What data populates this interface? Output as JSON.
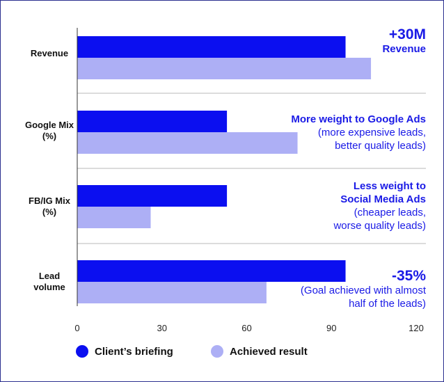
{
  "chart_data": {
    "type": "bar",
    "orientation": "horizontal",
    "categories": [
      "Revenue",
      "Google Mix\n(%)",
      "FB/IG Mix\n(%)",
      "Lead\nvolume"
    ],
    "series": [
      {
        "name": "Client’s briefing",
        "color": "#0b0ff0",
        "values": [
          95,
          53,
          53,
          95
        ]
      },
      {
        "name": "Achieved result",
        "color": "#adaff5",
        "values": [
          104,
          78,
          26,
          67
        ]
      }
    ],
    "xlim": [
      0,
      120
    ],
    "xticks": [
      "0",
      "30",
      "60",
      "90",
      "120"
    ],
    "xtick_values": [
      0,
      30,
      60,
      90,
      120
    ],
    "grid": false,
    "legend": "bottom",
    "annotations": [
      {
        "head": "+30M",
        "head2": "Revenue",
        "sub1": "",
        "sub2": ""
      },
      {
        "head": "More weight to Google Ads",
        "head2": "",
        "sub1": "(more expensive leads,",
        "sub2": "better quality leads)"
      },
      {
        "head": "Less weight to",
        "head2": "Social Media Ads",
        "sub1": "(cheaper leads,",
        "sub2": "worse quality leads)"
      },
      {
        "head": "-35%",
        "head2": "",
        "sub1": "(Goal achieved with almost",
        "sub2": "half of the leads)"
      }
    ]
  },
  "legend": {
    "briefing_label": "Client’s briefing",
    "result_label": "Achieved result",
    "briefing_color": "#0b0ff0",
    "result_color": "#adaff5"
  }
}
